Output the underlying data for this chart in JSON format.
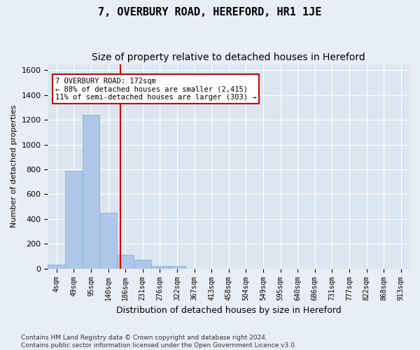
{
  "title": "7, OVERBURY ROAD, HEREFORD, HR1 1JE",
  "subtitle": "Size of property relative to detached houses in Hereford",
  "xlabel": "Distribution of detached houses by size in Hereford",
  "ylabel": "Number of detached properties",
  "footer_line1": "Contains HM Land Registry data © Crown copyright and database right 2024.",
  "footer_line2": "Contains public sector information licensed under the Open Government Licence v3.0.",
  "bin_labels": [
    "4sqm",
    "49sqm",
    "95sqm",
    "140sqm",
    "186sqm",
    "231sqm",
    "276sqm",
    "322sqm",
    "367sqm",
    "413sqm",
    "458sqm",
    "504sqm",
    "549sqm",
    "595sqm",
    "640sqm",
    "686sqm",
    "731sqm",
    "777sqm",
    "822sqm",
    "868sqm",
    "913sqm"
  ],
  "bar_values": [
    30,
    790,
    1240,
    450,
    110,
    70,
    20,
    20,
    0,
    0,
    0,
    0,
    0,
    0,
    0,
    0,
    0,
    0,
    0,
    0,
    0
  ],
  "bar_color": "#aec6e8",
  "bar_edge_color": "#7aaed0",
  "property_line_x": 3.72,
  "property_line_color": "#cc0000",
  "annotation_text": "7 OVERBURY ROAD: 172sqm\n← 88% of detached houses are smaller (2,415)\n11% of semi-detached houses are larger (303) →",
  "annotation_box_color": "#ffffff",
  "annotation_box_edge_color": "#cc0000",
  "ylim": [
    0,
    1650
  ],
  "yticks": [
    0,
    200,
    400,
    600,
    800,
    1000,
    1200,
    1400,
    1600
  ],
  "background_color": "#e8eef5",
  "plot_background_color": "#dce6f0",
  "grid_color": "#ffffff",
  "title_fontsize": 11,
  "subtitle_fontsize": 10
}
